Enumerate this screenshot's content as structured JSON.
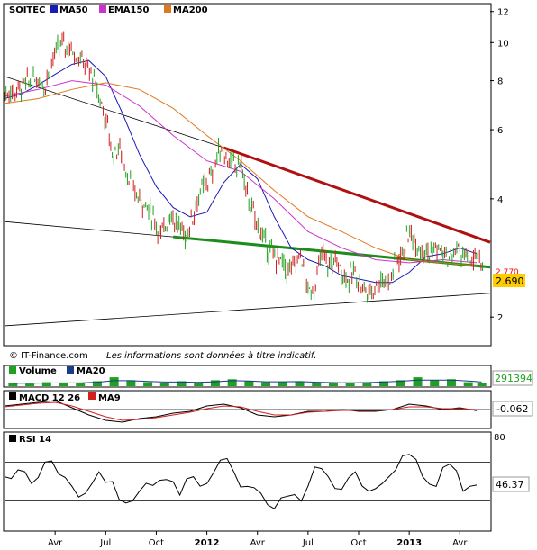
{
  "colors": {
    "frame": "#000000",
    "ma50": "#1a1ab4",
    "ema150": "#cc33cc",
    "ma200": "#e07820",
    "trend_red": "#b01010",
    "trend_green": "#1c8c1c",
    "trend_black": "#000000",
    "bull": "#20a020",
    "bear": "#d02020",
    "volume_bar": "#20a020",
    "volume_ma20": "#1a3a8a",
    "price_box": "#ffcc00",
    "volume_box_text": "#20a020",
    "rsi_line": "#000000"
  },
  "chart_data": [
    {
      "type": "line",
      "title": "SOITEC",
      "legend": [
        {
          "name": "MA50",
          "color": "#1a1ab4"
        },
        {
          "name": "EMA150",
          "color": "#cc33cc"
        },
        {
          "name": "MA200",
          "color": "#e07820"
        }
      ],
      "y_scale": "log",
      "ylim": [
        1.7,
        12.5
      ],
      "y_ticks": [
        2,
        4,
        6,
        8,
        10,
        12
      ],
      "x_tick_labels": [
        "Avr",
        "Jul",
        "Oct",
        "2012",
        "Avr",
        "Jul",
        "Oct",
        "2013",
        "Avr"
      ],
      "x_tick_months": [
        3,
        6,
        9,
        12,
        15,
        18,
        21,
        24,
        27
      ],
      "x_range_months": [
        0,
        28.8
      ],
      "last_price": "2.690",
      "hidden_value_label": "2.770",
      "series": [
        {
          "name": "Price",
          "x_months": [
            0.0,
            0.8,
            1.3,
            2.0,
            2.4,
            2.9,
            3.4,
            4.0,
            4.6,
            5.2,
            6.0,
            6.4,
            6.8,
            7.3,
            7.8,
            8.3,
            8.8,
            9.3,
            9.8,
            10.3,
            10.8,
            11.3,
            11.8,
            12.3,
            12.8,
            13.3,
            13.7,
            14.0,
            14.3,
            14.8,
            15.3,
            15.8,
            16.3,
            16.8,
            17.2,
            17.6,
            18.0,
            18.4,
            18.8,
            19.2,
            19.6,
            20.0,
            20.4,
            20.8,
            21.2,
            21.6,
            22.0,
            22.4,
            22.8,
            23.2,
            23.6,
            24.0,
            24.4,
            24.8,
            25.2,
            25.6,
            26.0,
            26.4,
            26.8,
            27.2,
            27.6,
            28.0,
            28.4
          ],
          "values": [
            7.4,
            7.6,
            7.9,
            8.1,
            7.8,
            9.2,
            10.0,
            9.6,
            9.0,
            8.2,
            6.4,
            5.2,
            5.4,
            4.6,
            4.1,
            3.9,
            3.6,
            3.2,
            3.7,
            3.4,
            3.2,
            3.8,
            4.3,
            4.6,
            5.4,
            5.0,
            4.8,
            5.0,
            4.2,
            3.6,
            3.2,
            2.9,
            2.8,
            2.6,
            2.7,
            2.9,
            2.3,
            2.4,
            2.9,
            2.7,
            2.8,
            2.6,
            2.5,
            2.6,
            2.4,
            2.3,
            2.4,
            2.5,
            2.4,
            2.8,
            2.9,
            3.3,
            3.1,
            3.0,
            2.9,
            3.0,
            2.9,
            2.8,
            3.0,
            2.9,
            2.8,
            2.75,
            2.69
          ]
        },
        {
          "name": "MA50",
          "x_months": [
            0,
            1,
            2,
            3,
            4,
            5,
            6,
            7,
            8,
            9,
            10,
            11,
            12,
            13,
            14,
            15,
            16,
            17,
            18,
            19,
            20,
            21,
            22,
            23,
            24,
            25,
            26,
            27,
            28
          ],
          "values": [
            7.2,
            7.4,
            7.8,
            8.3,
            8.8,
            9.0,
            8.2,
            6.6,
            5.2,
            4.3,
            3.8,
            3.6,
            3.7,
            4.4,
            4.9,
            4.5,
            3.6,
            3.0,
            2.8,
            2.7,
            2.55,
            2.5,
            2.45,
            2.45,
            2.6,
            2.85,
            2.9,
            3.0,
            2.9
          ]
        },
        {
          "name": "EMA150",
          "x_months": [
            0,
            2,
            4,
            6,
            8,
            10,
            12,
            14,
            16,
            18,
            20,
            22,
            24,
            26,
            28
          ],
          "values": [
            7.3,
            7.6,
            8.0,
            7.8,
            6.9,
            5.8,
            5.0,
            4.7,
            4.0,
            3.3,
            3.0,
            2.8,
            2.75,
            2.8,
            2.75
          ]
        },
        {
          "name": "MA200",
          "x_months": [
            0,
            2,
            4,
            6,
            8,
            10,
            12,
            14,
            16,
            18,
            20,
            22,
            24,
            26,
            28
          ],
          "values": [
            7.0,
            7.2,
            7.6,
            7.9,
            7.6,
            6.8,
            5.8,
            5.0,
            4.2,
            3.6,
            3.3,
            3.0,
            2.8,
            2.75,
            2.7
          ]
        }
      ],
      "trendlines": [
        {
          "color": "#b01010",
          "from": [
            13.0,
            5.4
          ],
          "to": [
            28.8,
            3.1
          ]
        },
        {
          "color": "#1c8c1c",
          "from": [
            10.0,
            3.2
          ],
          "to": [
            28.8,
            2.68
          ]
        },
        {
          "color": "#000000",
          "from": [
            0.0,
            8.2
          ],
          "to": [
            13.0,
            5.4
          ]
        },
        {
          "color": "#000000",
          "from": [
            0.0,
            3.5
          ],
          "to": [
            10.0,
            3.2
          ]
        },
        {
          "color": "#000000",
          "from": [
            0.0,
            1.9
          ],
          "to": [
            28.8,
            2.3
          ]
        }
      ],
      "footer": {
        "source": "© IT-Finance.com",
        "disclaimer": "Les informations sont données à titre indicatif."
      }
    },
    {
      "type": "bar",
      "title": "Volume",
      "legend": [
        {
          "name": "Volume",
          "color": "#20a020"
        },
        {
          "name": "MA20",
          "color": "#1a3a8a"
        }
      ],
      "last_value": "291394",
      "x_months": [
        0.5,
        1.5,
        2.5,
        3.5,
        4.5,
        5.5,
        6.5,
        7.5,
        8.5,
        9.5,
        10.5,
        11.5,
        12.5,
        13.5,
        14.5,
        15.5,
        16.5,
        17.5,
        18.5,
        19.5,
        20.5,
        21.5,
        22.5,
        23.5,
        24.5,
        25.5,
        26.5,
        27.5,
        28.3
      ],
      "values": [
        0.3,
        0.25,
        0.4,
        0.35,
        0.3,
        0.5,
        0.9,
        0.6,
        0.4,
        0.35,
        0.5,
        0.3,
        0.6,
        0.7,
        0.5,
        0.4,
        0.45,
        0.5,
        0.3,
        0.35,
        0.3,
        0.4,
        0.5,
        0.6,
        0.9,
        0.6,
        0.7,
        0.4,
        0.3
      ],
      "ma20": [
        0.3,
        0.3,
        0.32,
        0.33,
        0.33,
        0.4,
        0.55,
        0.55,
        0.48,
        0.42,
        0.42,
        0.38,
        0.45,
        0.55,
        0.52,
        0.45,
        0.45,
        0.46,
        0.4,
        0.36,
        0.34,
        0.36,
        0.42,
        0.5,
        0.62,
        0.62,
        0.62,
        0.52,
        0.42
      ]
    },
    {
      "type": "line",
      "title": "MACD 12 26",
      "legend": [
        {
          "name": "MACD 12 26",
          "color": "#000000"
        },
        {
          "name": "MA9",
          "color": "#d02020"
        }
      ],
      "last_value": "-0.062",
      "ylim": [
        -1.0,
        1.0
      ],
      "x_months": [
        0,
        1,
        2,
        3,
        4,
        5,
        6,
        7,
        8,
        9,
        10,
        11,
        12,
        13,
        14,
        15,
        16,
        17,
        18,
        19,
        20,
        21,
        22,
        23,
        24,
        25,
        26,
        27,
        28
      ],
      "series": [
        {
          "name": "MACD 12 26",
          "values": [
            0.2,
            0.3,
            0.4,
            0.5,
            0.1,
            -0.3,
            -0.6,
            -0.7,
            -0.5,
            -0.4,
            -0.2,
            -0.1,
            0.2,
            0.3,
            0.1,
            -0.3,
            -0.4,
            -0.3,
            -0.1,
            -0.1,
            0.0,
            -0.1,
            -0.1,
            0.0,
            0.3,
            0.2,
            0.0,
            0.1,
            -0.06
          ]
        },
        {
          "name": "MA9",
          "values": [
            0.15,
            0.25,
            0.35,
            0.4,
            0.2,
            -0.1,
            -0.4,
            -0.6,
            -0.55,
            -0.45,
            -0.3,
            -0.15,
            0.05,
            0.2,
            0.15,
            -0.1,
            -0.3,
            -0.3,
            -0.15,
            -0.1,
            -0.05,
            -0.05,
            -0.05,
            0.0,
            0.15,
            0.15,
            0.05,
            0.05,
            0.0
          ]
        }
      ]
    },
    {
      "type": "line",
      "title": "RSI 14",
      "last_value": "46.37",
      "ylim": [
        0,
        100
      ],
      "y_ticks": [
        80
      ],
      "reference_lines": [
        30,
        70
      ],
      "x_months": [
        0,
        0.8,
        1.6,
        2.4,
        3.2,
        4.0,
        4.8,
        5.6,
        6.4,
        7.2,
        8.0,
        8.8,
        9.6,
        10.4,
        11.2,
        12.0,
        12.8,
        13.6,
        14.4,
        15.2,
        16.0,
        16.8,
        17.6,
        18.4,
        19.2,
        20.0,
        20.8,
        21.6,
        22.4,
        23.2,
        24.0,
        24.8,
        25.6,
        26.4,
        27.2,
        28.0
      ],
      "values": [
        55,
        62,
        48,
        70,
        58,
        45,
        38,
        60,
        50,
        28,
        40,
        46,
        52,
        36,
        55,
        48,
        72,
        60,
        45,
        38,
        22,
        35,
        30,
        65,
        55,
        42,
        60,
        40,
        48,
        62,
        78,
        55,
        45,
        68,
        40,
        46.37
      ]
    }
  ]
}
